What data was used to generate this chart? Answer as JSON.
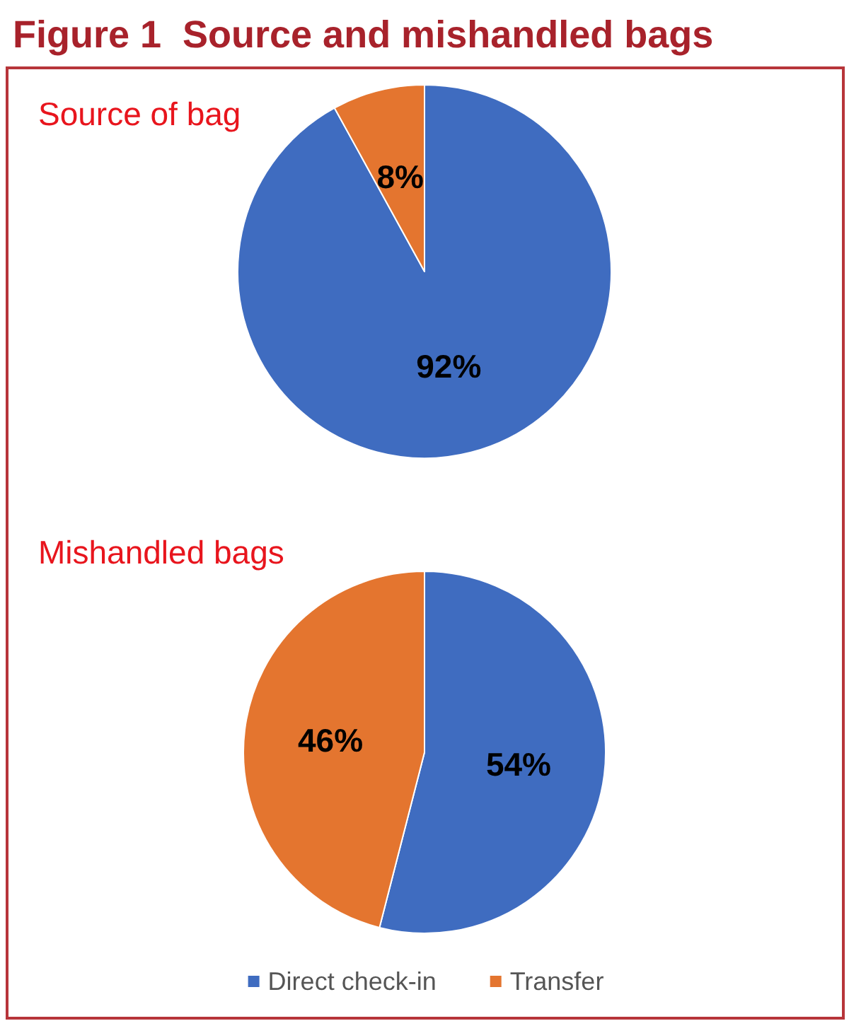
{
  "chart_data": {
    "type": "pie",
    "title": "Figure 1  Source and mishandled bags",
    "categories": [
      "Direct check-in",
      "Transfer"
    ],
    "colors": [
      "#3f6cc0",
      "#e4752f"
    ],
    "series": [
      {
        "name": "Source of bag",
        "values": [
          92,
          8
        ],
        "value_labels": [
          "92%",
          "8%"
        ]
      },
      {
        "name": "Mishandled bags",
        "values": [
          54,
          46
        ],
        "value_labels": [
          "54%",
          "46%"
        ]
      }
    ],
    "legend": "bottom"
  }
}
